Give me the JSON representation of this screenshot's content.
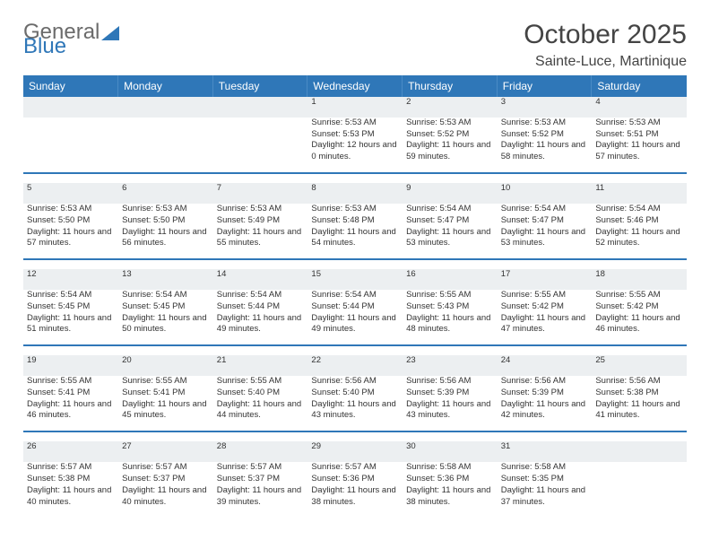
{
  "brand": {
    "part1": "General",
    "part2": "Blue",
    "text_color": "#6b6b6b",
    "accent_color": "#2f77b8"
  },
  "title": "October 2025",
  "location": "Sainte-Luce, Martinique",
  "colors": {
    "header_bg": "#2f77b8",
    "header_text": "#ffffff",
    "daynum_bg": "#eceff1",
    "rule": "#2f77b8",
    "body_text": "#333333"
  },
  "weekdays": [
    "Sunday",
    "Monday",
    "Tuesday",
    "Wednesday",
    "Thursday",
    "Friday",
    "Saturday"
  ],
  "weeks": [
    [
      null,
      null,
      null,
      {
        "n": "1",
        "sunrise": "5:53 AM",
        "sunset": "5:53 PM",
        "day_h": "12",
        "day_m": "0"
      },
      {
        "n": "2",
        "sunrise": "5:53 AM",
        "sunset": "5:52 PM",
        "day_h": "11",
        "day_m": "59"
      },
      {
        "n": "3",
        "sunrise": "5:53 AM",
        "sunset": "5:52 PM",
        "day_h": "11",
        "day_m": "58"
      },
      {
        "n": "4",
        "sunrise": "5:53 AM",
        "sunset": "5:51 PM",
        "day_h": "11",
        "day_m": "57"
      }
    ],
    [
      {
        "n": "5",
        "sunrise": "5:53 AM",
        "sunset": "5:50 PM",
        "day_h": "11",
        "day_m": "57"
      },
      {
        "n": "6",
        "sunrise": "5:53 AM",
        "sunset": "5:50 PM",
        "day_h": "11",
        "day_m": "56"
      },
      {
        "n": "7",
        "sunrise": "5:53 AM",
        "sunset": "5:49 PM",
        "day_h": "11",
        "day_m": "55"
      },
      {
        "n": "8",
        "sunrise": "5:53 AM",
        "sunset": "5:48 PM",
        "day_h": "11",
        "day_m": "54"
      },
      {
        "n": "9",
        "sunrise": "5:54 AM",
        "sunset": "5:47 PM",
        "day_h": "11",
        "day_m": "53"
      },
      {
        "n": "10",
        "sunrise": "5:54 AM",
        "sunset": "5:47 PM",
        "day_h": "11",
        "day_m": "53"
      },
      {
        "n": "11",
        "sunrise": "5:54 AM",
        "sunset": "5:46 PM",
        "day_h": "11",
        "day_m": "52"
      }
    ],
    [
      {
        "n": "12",
        "sunrise": "5:54 AM",
        "sunset": "5:45 PM",
        "day_h": "11",
        "day_m": "51"
      },
      {
        "n": "13",
        "sunrise": "5:54 AM",
        "sunset": "5:45 PM",
        "day_h": "11",
        "day_m": "50"
      },
      {
        "n": "14",
        "sunrise": "5:54 AM",
        "sunset": "5:44 PM",
        "day_h": "11",
        "day_m": "49"
      },
      {
        "n": "15",
        "sunrise": "5:54 AM",
        "sunset": "5:44 PM",
        "day_h": "11",
        "day_m": "49"
      },
      {
        "n": "16",
        "sunrise": "5:55 AM",
        "sunset": "5:43 PM",
        "day_h": "11",
        "day_m": "48"
      },
      {
        "n": "17",
        "sunrise": "5:55 AM",
        "sunset": "5:42 PM",
        "day_h": "11",
        "day_m": "47"
      },
      {
        "n": "18",
        "sunrise": "5:55 AM",
        "sunset": "5:42 PM",
        "day_h": "11",
        "day_m": "46"
      }
    ],
    [
      {
        "n": "19",
        "sunrise": "5:55 AM",
        "sunset": "5:41 PM",
        "day_h": "11",
        "day_m": "46"
      },
      {
        "n": "20",
        "sunrise": "5:55 AM",
        "sunset": "5:41 PM",
        "day_h": "11",
        "day_m": "45"
      },
      {
        "n": "21",
        "sunrise": "5:55 AM",
        "sunset": "5:40 PM",
        "day_h": "11",
        "day_m": "44"
      },
      {
        "n": "22",
        "sunrise": "5:56 AM",
        "sunset": "5:40 PM",
        "day_h": "11",
        "day_m": "43"
      },
      {
        "n": "23",
        "sunrise": "5:56 AM",
        "sunset": "5:39 PM",
        "day_h": "11",
        "day_m": "43"
      },
      {
        "n": "24",
        "sunrise": "5:56 AM",
        "sunset": "5:39 PM",
        "day_h": "11",
        "day_m": "42"
      },
      {
        "n": "25",
        "sunrise": "5:56 AM",
        "sunset": "5:38 PM",
        "day_h": "11",
        "day_m": "41"
      }
    ],
    [
      {
        "n": "26",
        "sunrise": "5:57 AM",
        "sunset": "5:38 PM",
        "day_h": "11",
        "day_m": "40"
      },
      {
        "n": "27",
        "sunrise": "5:57 AM",
        "sunset": "5:37 PM",
        "day_h": "11",
        "day_m": "40"
      },
      {
        "n": "28",
        "sunrise": "5:57 AM",
        "sunset": "5:37 PM",
        "day_h": "11",
        "day_m": "39"
      },
      {
        "n": "29",
        "sunrise": "5:57 AM",
        "sunset": "5:36 PM",
        "day_h": "11",
        "day_m": "38"
      },
      {
        "n": "30",
        "sunrise": "5:58 AM",
        "sunset": "5:36 PM",
        "day_h": "11",
        "day_m": "38"
      },
      {
        "n": "31",
        "sunrise": "5:58 AM",
        "sunset": "5:35 PM",
        "day_h": "11",
        "day_m": "37"
      },
      null
    ]
  ],
  "labels": {
    "sunrise": "Sunrise:",
    "sunset": "Sunset:",
    "daylight": "Daylight:",
    "hours_word": "hours",
    "and_word": "and",
    "minutes_word": "minutes."
  }
}
